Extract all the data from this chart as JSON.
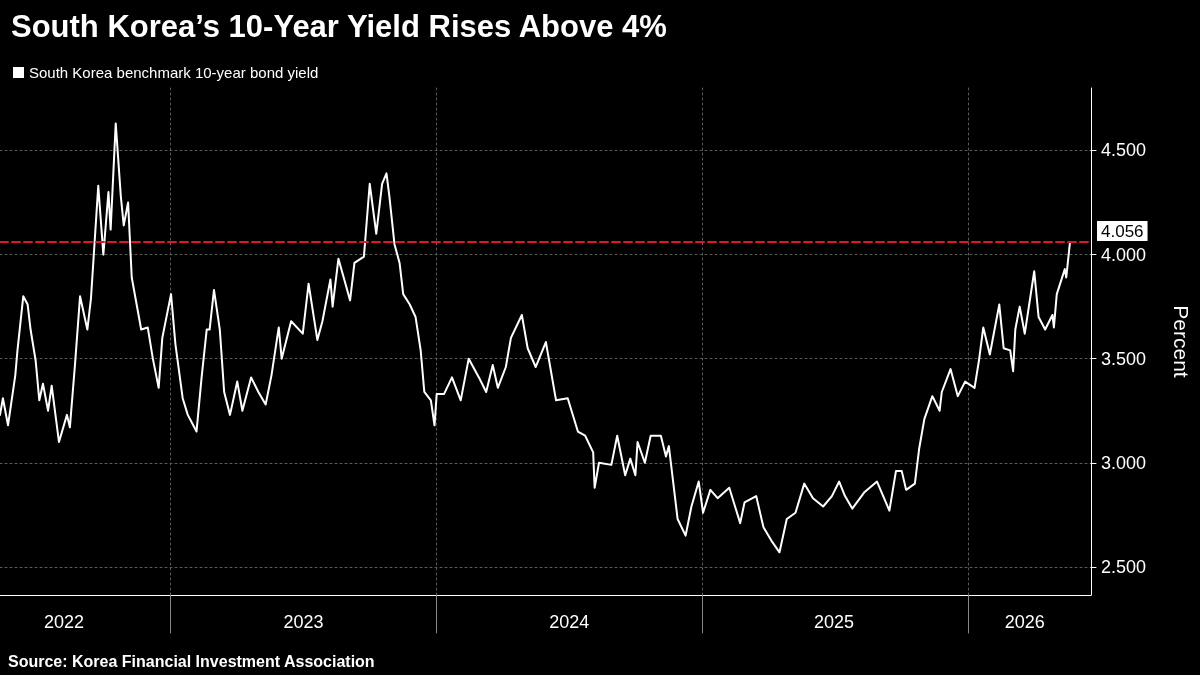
{
  "chart_data": {
    "type": "line",
    "title": "South Korea’s 10-Year Yield Rises Above 4%",
    "ylabel": "Percent",
    "annotations": [
      "Source: Korea Financial Investment Association"
    ],
    "legend": "top left",
    "grid": true,
    "marker": "none",
    "line_style": "solid",
    "xlim": [
      "2022-05-12",
      "2026-06-19"
    ],
    "xticks": [
      {
        "value": "2022-08-08",
        "label": "2022"
      },
      {
        "value": "2023-01-01",
        "label": null
      },
      {
        "value": "2023-07-03",
        "label": "2023"
      },
      {
        "value": "2024-01-01",
        "label": null
      },
      {
        "value": "2024-07-02",
        "label": "2024"
      },
      {
        "value": "2025-01-01",
        "label": null
      },
      {
        "value": "2025-07-01",
        "label": "2025"
      },
      {
        "value": "2026-01-01",
        "label": null
      },
      {
        "value": "2026-03-20",
        "label": "2026"
      }
    ],
    "ylim": [
      2.365,
      4.8
    ],
    "yticks": [
      {
        "value": 2.5,
        "label": "2.500"
      },
      {
        "value": 3,
        "label": "3.000"
      },
      {
        "value": 3.5,
        "label": "3.500"
      },
      {
        "value": 4,
        "label": "4.000"
      },
      {
        "value": 4.5,
        "label": "4.500"
      }
    ],
    "ref_lines": [
      {
        "axis": "y",
        "value": 4.056,
        "label": "4.056",
        "color": "#e0162b",
        "line_style": "dashed"
      }
    ],
    "x": [
      "2022-05-12",
      "2022-05-16",
      "2022-05-23",
      "2022-06-02",
      "2022-06-05",
      "2022-06-13",
      "2022-06-19",
      "2022-06-23",
      "2022-06-30",
      "2022-07-05",
      "2022-07-10",
      "2022-07-17",
      "2022-07-22",
      "2022-08-01",
      "2022-08-12",
      "2022-08-16",
      "2022-08-23",
      "2022-08-30",
      "2022-09-09",
      "2022-09-14",
      "2022-09-24",
      "2022-10-01",
      "2022-10-08",
      "2022-10-11",
      "2022-10-18",
      "2022-10-25",
      "2022-10-29",
      "2022-11-04",
      "2022-11-09",
      "2022-11-22",
      "2022-12-01",
      "2022-12-08",
      "2022-12-16",
      "2022-12-21",
      "2023-01-02",
      "2023-01-08",
      "2023-01-18",
      "2023-01-25",
      "2023-02-06",
      "2023-02-13",
      "2023-02-20",
      "2023-02-24",
      "2023-03-02",
      "2023-03-10",
      "2023-03-16",
      "2023-03-24",
      "2023-04-03",
      "2023-04-10",
      "2023-04-22",
      "2023-05-02",
      "2023-05-12",
      "2023-05-20",
      "2023-05-30",
      "2023-06-03",
      "2023-06-16",
      "2023-07-02",
      "2023-07-10",
      "2023-07-22",
      "2023-07-29",
      "2023-08-09",
      "2023-08-12",
      "2023-08-20",
      "2023-08-28",
      "2023-09-05",
      "2023-09-11",
      "2023-09-24",
      "2023-10-02",
      "2023-10-11",
      "2023-10-19",
      "2023-10-25",
      "2023-10-29",
      "2023-11-05",
      "2023-11-12",
      "2023-11-17",
      "2023-11-26",
      "2023-12-04",
      "2023-12-11",
      "2023-12-16",
      "2023-12-25",
      "2023-12-30",
      "2024-01-02",
      "2024-01-12",
      "2024-01-23",
      "2024-02-04",
      "2024-02-15",
      "2024-02-29",
      "2024-03-10",
      "2024-03-19",
      "2024-03-26",
      "2024-04-06",
      "2024-04-13",
      "2024-04-28",
      "2024-05-06",
      "2024-05-17",
      "2024-05-31",
      "2024-06-14",
      "2024-06-30",
      "2024-07-14",
      "2024-07-24",
      "2024-08-04",
      "2024-08-06",
      "2024-08-12",
      "2024-08-29",
      "2024-09-06",
      "2024-09-17",
      "2024-09-24",
      "2024-10-01",
      "2024-10-04",
      "2024-10-14",
      "2024-10-22",
      "2024-11-05",
      "2024-11-12",
      "2024-11-16",
      "2024-11-28",
      "2024-12-09",
      "2024-12-17",
      "2024-12-27",
      "2025-01-02",
      "2025-01-12",
      "2025-01-22",
      "2025-02-07",
      "2025-02-22",
      "2025-02-28",
      "2025-03-16",
      "2025-03-26",
      "2025-04-07",
      "2025-04-17",
      "2025-04-27",
      "2025-05-09",
      "2025-05-21",
      "2025-06-02",
      "2025-06-16",
      "2025-06-28",
      "2025-07-08",
      "2025-07-16",
      "2025-07-26",
      "2025-08-12",
      "2025-08-29",
      "2025-09-15",
      "2025-09-24",
      "2025-10-02",
      "2025-10-08",
      "2025-10-20",
      "2025-10-26",
      "2025-11-02",
      "2025-11-13",
      "2025-11-23",
      "2025-11-26",
      "2025-12-08",
      "2025-12-18",
      "2025-12-28",
      "2026-01-10",
      "2026-01-16",
      "2026-01-22",
      "2026-01-31",
      "2026-02-13",
      "2026-02-19",
      "2026-02-28",
      "2026-03-04",
      "2026-03-07",
      "2026-03-13",
      "2026-03-20",
      "2026-04-02",
      "2026-04-08",
      "2026-04-17",
      "2026-04-27",
      "2026-04-29",
      "2026-05-03",
      "2026-05-14",
      "2026-05-16",
      "2026-05-21"
    ],
    "series": [
      {
        "name": "South Korea benchmark 10-year bond yield",
        "color": "#ffffff",
        "values": [
          3.23,
          3.31,
          3.18,
          3.42,
          3.54,
          3.8,
          3.76,
          3.64,
          3.49,
          3.3,
          3.38,
          3.25,
          3.37,
          3.1,
          3.23,
          3.17,
          3.47,
          3.8,
          3.64,
          3.79,
          4.33,
          4.0,
          4.3,
          4.12,
          4.63,
          4.28,
          4.14,
          4.25,
          3.89,
          3.64,
          3.65,
          3.5,
          3.36,
          3.6,
          3.81,
          3.57,
          3.31,
          3.23,
          3.15,
          3.41,
          3.64,
          3.64,
          3.83,
          3.64,
          3.34,
          3.23,
          3.39,
          3.25,
          3.41,
          3.34,
          3.28,
          3.42,
          3.65,
          3.5,
          3.68,
          3.62,
          3.86,
          3.59,
          3.68,
          3.88,
          3.75,
          3.98,
          3.88,
          3.78,
          3.96,
          3.99,
          4.34,
          4.1,
          4.34,
          4.39,
          4.28,
          4.05,
          3.96,
          3.81,
          3.76,
          3.7,
          3.54,
          3.34,
          3.3,
          3.18,
          3.33,
          3.33,
          3.41,
          3.3,
          3.5,
          3.41,
          3.34,
          3.47,
          3.36,
          3.46,
          3.6,
          3.71,
          3.55,
          3.46,
          3.58,
          3.3,
          3.31,
          3.15,
          3.13,
          3.05,
          2.88,
          3.0,
          2.99,
          3.13,
          2.94,
          3.02,
          2.94,
          3.1,
          3.0,
          3.13,
          3.13,
          3.03,
          3.08,
          2.73,
          2.65,
          2.79,
          2.91,
          2.76,
          2.87,
          2.83,
          2.88,
          2.71,
          2.81,
          2.84,
          2.69,
          2.62,
          2.57,
          2.73,
          2.76,
          2.9,
          2.83,
          2.79,
          2.84,
          2.91,
          2.84,
          2.78,
          2.86,
          2.91,
          2.77,
          2.96,
          2.96,
          2.87,
          2.9,
          3.07,
          3.21,
          3.32,
          3.25,
          3.34,
          3.45,
          3.32,
          3.39,
          3.36,
          3.49,
          3.65,
          3.52,
          3.76,
          3.55,
          3.54,
          3.44,
          3.64,
          3.75,
          3.62,
          3.92,
          3.7,
          3.64,
          3.71,
          3.65,
          3.81,
          3.93,
          3.89,
          4.056
        ]
      }
    ]
  }
}
